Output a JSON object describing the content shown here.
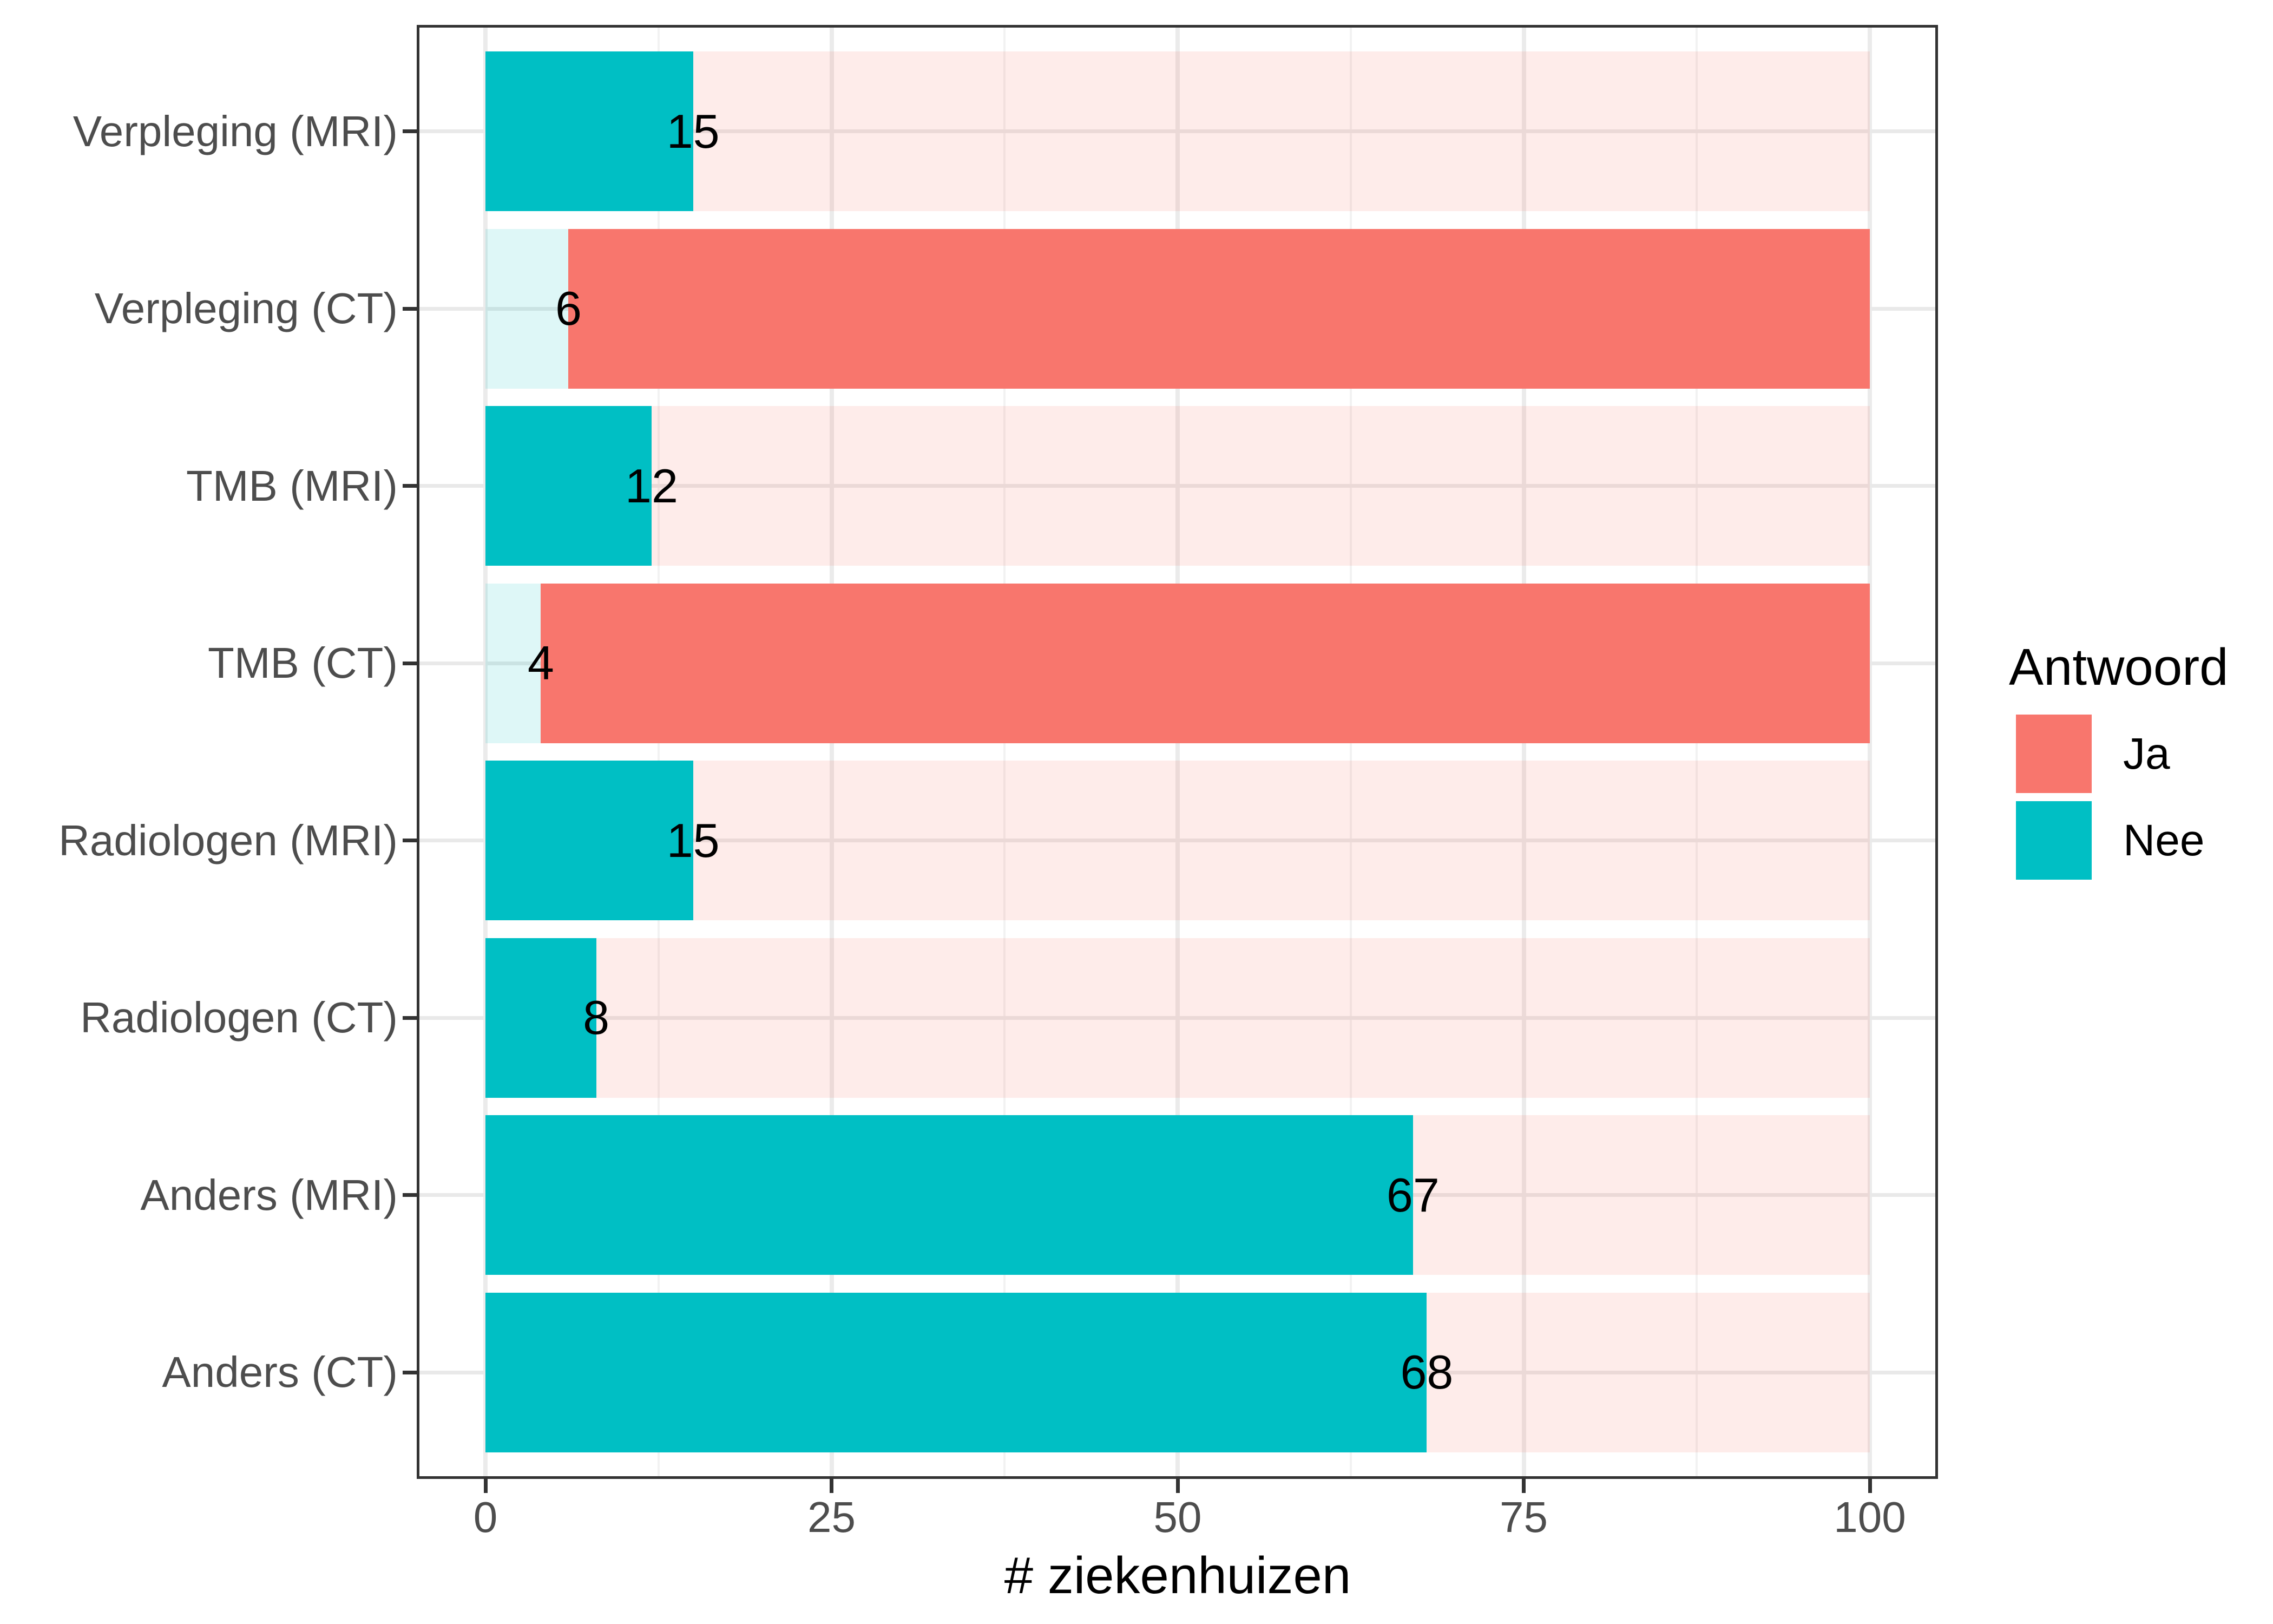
{
  "figure": {
    "x_axis_title": "# ziekenhuizen"
  },
  "legend": {
    "title": "Antwoord",
    "entries": [
      {
        "label": "Ja",
        "color": "#F8766D"
      },
      {
        "label": "Nee",
        "color": "#00BFC4"
      }
    ]
  },
  "colors": {
    "ja": "#F8766D",
    "nee": "#00BFC4",
    "grid_major": "#EBEBEB",
    "grid_minor": "#F2F2F2",
    "panel_border": "#333333",
    "axis_text": "#4D4D4D",
    "label_text": "#000000",
    "background": "#FFFFFF"
  },
  "chart_data": {
    "type": "bar",
    "orientation": "horizontal",
    "stacked": true,
    "title": "",
    "xlabel": "# ziekenhuizen",
    "ylabel": "",
    "xlim": [
      0,
      100
    ],
    "x_tick_values": [
      0,
      25,
      50,
      75,
      100
    ],
    "x_tick_labels": [
      "0",
      "25",
      "50",
      "75",
      "100"
    ],
    "minor_tick_values": [
      12.5,
      37.5,
      62.5,
      87.5
    ],
    "grid": "major vertical + minor vertical + major horizontal",
    "legend_position": "right",
    "legend_title": "Antwoord",
    "categories": [
      "Verpleging (MRI)",
      "Verpleging (CT)",
      "TMB (MRI)",
      "TMB (CT)",
      "Radiologen (MRI)",
      "Radiologen (CT)",
      "Anders (MRI)",
      "Anders (CT)"
    ],
    "series": [
      {
        "name": "Nee",
        "color": "#00BFC4",
        "values": [
          15,
          6,
          12,
          4,
          15,
          8,
          67,
          68
        ]
      },
      {
        "name": "Ja",
        "color": "#F8766D",
        "values": [
          85,
          94,
          88,
          96,
          85,
          92,
          33,
          32
        ]
      }
    ],
    "bar_value_labels": [
      "15",
      "6",
      "12",
      "4",
      "15",
      "8",
      "67",
      "68"
    ],
    "emphasized_series_per_row": [
      "Nee",
      "Ja",
      "Nee",
      "Ja",
      "Nee",
      "Nee",
      "Nee",
      "Nee"
    ],
    "muted_alpha": 0.13
  }
}
